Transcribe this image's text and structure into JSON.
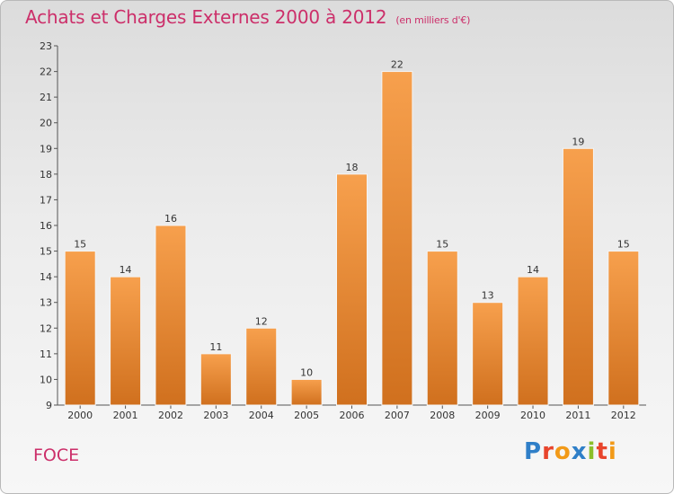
{
  "header": {
    "title": "Achats et Charges Externes 2000 à 2012",
    "subtitle": "(en milliers d'€)"
  },
  "footer": {
    "place": "FOCE",
    "logo": "Proxiti",
    "logo_colors": [
      "#2f7fc8",
      "#e8452c",
      "#f29a18",
      "#2f7fc8",
      "#8bbf2a",
      "#e8452c",
      "#f29a18"
    ]
  },
  "colors": {
    "bar_light": "#f7a04d",
    "bar_dark": "#d0701e",
    "accent": "#cc2f6a"
  },
  "chart_data": {
    "type": "bar",
    "categories": [
      "2000",
      "2001",
      "2002",
      "2003",
      "2004",
      "2005",
      "2006",
      "2007",
      "2008",
      "2009",
      "2010",
      "2011",
      "2012"
    ],
    "values": [
      15,
      14,
      16,
      11,
      12,
      10,
      18,
      22,
      15,
      13,
      14,
      19,
      15
    ],
    "title": "Achats et Charges Externes 2000 à 2012",
    "ylim": [
      9,
      23
    ],
    "yticks": [
      9,
      10,
      11,
      12,
      13,
      14,
      15,
      16,
      17,
      18,
      19,
      20,
      21,
      22,
      23
    ],
    "grid": false,
    "legend": "none"
  }
}
